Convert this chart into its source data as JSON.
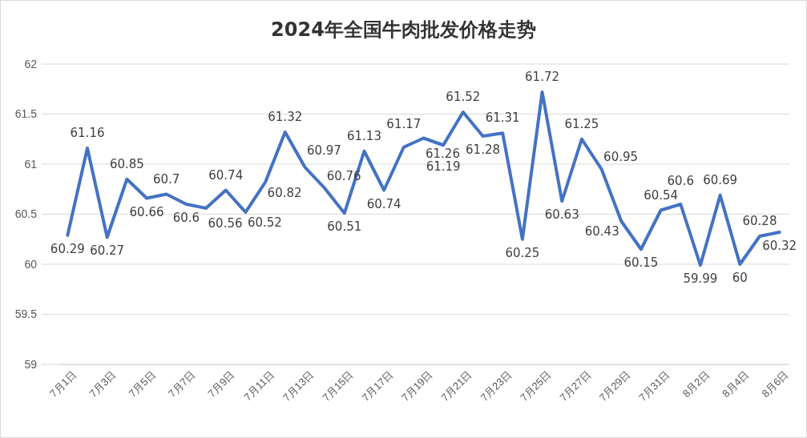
{
  "chart_data": {
    "type": "line",
    "title": "2024年全国牛肉批发价格走势",
    "categories": [
      "7月1日",
      null,
      "7月3日",
      null,
      "7月5日",
      null,
      "7月7日",
      null,
      "7月9日",
      null,
      "7月11日",
      null,
      "7月13日",
      null,
      "7月15日",
      null,
      "7月17日",
      null,
      "7月19日",
      null,
      "7月21日",
      null,
      "7月23日",
      null,
      "7月25日",
      null,
      "7月27日",
      null,
      "7月29日",
      null,
      "7月31日",
      null,
      "8月2日",
      null,
      "8月4日",
      null,
      "8月6日"
    ],
    "series": [
      {
        "color": "#4472c4",
        "values": [
          60.29,
          61.16,
          60.27,
          60.85,
          60.66,
          60.7,
          60.6,
          60.56,
          60.74,
          60.52,
          60.82,
          61.32,
          60.97,
          60.76,
          60.51,
          61.13,
          60.74,
          61.17,
          61.26,
          61.19,
          61.52,
          61.28,
          61.31,
          60.25,
          61.72,
          60.63,
          61.25,
          60.95,
          60.43,
          60.15,
          60.54,
          60.6,
          59.99,
          60.69,
          60,
          60.28,
          60.32
        ]
      }
    ],
    "ylim": [
      59,
      62
    ],
    "yticks": [
      59,
      59.5,
      60,
      60.5,
      61,
      61.5,
      62
    ],
    "grid": "y",
    "data_labels": true,
    "marker": "none",
    "line_style": "solid"
  }
}
